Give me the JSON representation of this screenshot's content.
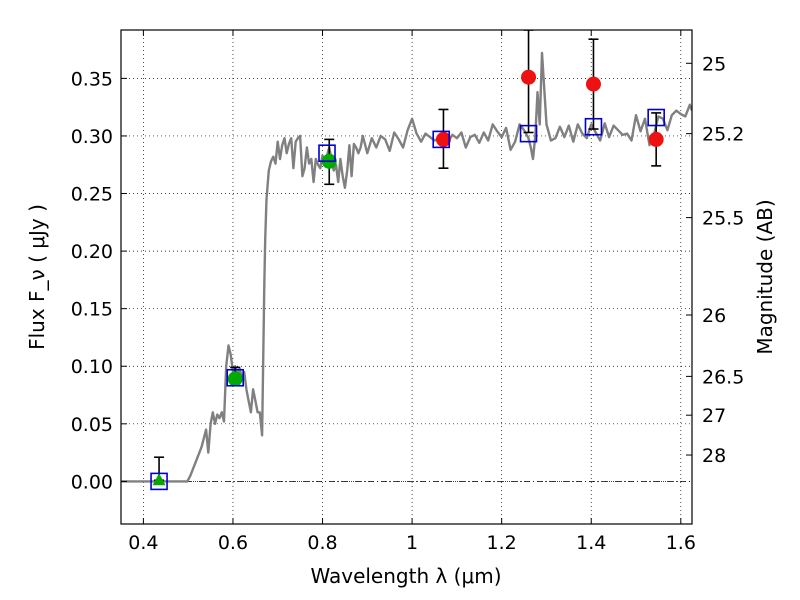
{
  "chart_data": {
    "type": "scatter",
    "xlabel": "Wavelength  λ (μm)",
    "ylabel": "Flux  F_ν  ( μJy )",
    "y2label": "Magnitude (AB)",
    "xlim": [
      0.35,
      1.625
    ],
    "ylim": [
      -0.037,
      0.392
    ],
    "xticks": [
      0.4,
      0.6,
      0.8,
      1.0,
      1.2,
      1.4,
      1.6
    ],
    "xtick_labels": [
      "0.4",
      "0.6",
      "0.8",
      "1",
      "1.2",
      "1.4",
      "1.6"
    ],
    "yticks": [
      0.0,
      0.05,
      0.1,
      0.15,
      0.2,
      0.25,
      0.3,
      0.35
    ],
    "ytick_labels": [
      "0.00",
      "0.05",
      "0.10",
      "0.15",
      "0.20",
      "0.25",
      "0.30",
      "0.35"
    ],
    "y2_ticks": [
      {
        "label": "25",
        "flux": 0.3631
      },
      {
        "label": "25.2",
        "flux": 0.302
      },
      {
        "label": "25.5",
        "flux": 0.2291
      },
      {
        "label": "26",
        "flux": 0.1445
      },
      {
        "label": "26.5",
        "flux": 0.0912
      },
      {
        "label": "27",
        "flux": 0.0575
      },
      {
        "label": "28",
        "flux": 0.0229
      }
    ],
    "grid": true,
    "grid_style": "dotted",
    "zero_line": true,
    "colors": {
      "template": "#808080",
      "model_box": "#0000cc",
      "detection": "#00aa00",
      "measurement": "#ee1111",
      "errorbar": "#000000"
    },
    "template_spectrum": {
      "x": [
        0.35,
        0.44,
        0.498,
        0.505,
        0.52,
        0.53,
        0.54,
        0.545,
        0.55,
        0.555,
        0.56,
        0.565,
        0.57,
        0.575,
        0.58,
        0.585,
        0.59,
        0.595,
        0.6,
        0.605,
        0.61,
        0.615,
        0.62,
        0.625,
        0.63,
        0.635,
        0.64,
        0.645,
        0.65,
        0.655,
        0.66,
        0.665,
        0.67,
        0.672,
        0.675,
        0.68,
        0.685,
        0.69,
        0.695,
        0.7,
        0.705,
        0.71,
        0.715,
        0.72,
        0.725,
        0.73,
        0.735,
        0.74,
        0.745,
        0.75,
        0.755,
        0.76,
        0.765,
        0.77,
        0.775,
        0.78,
        0.785,
        0.79,
        0.795,
        0.8,
        0.805,
        0.81,
        0.815,
        0.82,
        0.825,
        0.83,
        0.835,
        0.84,
        0.845,
        0.85,
        0.855,
        0.86,
        0.865,
        0.87,
        0.875,
        0.88,
        0.885,
        0.89,
        0.9,
        0.91,
        0.92,
        0.93,
        0.94,
        0.95,
        0.96,
        0.97,
        0.98,
        0.99,
        1.0,
        1.01,
        1.02,
        1.03,
        1.04,
        1.05,
        1.06,
        1.07,
        1.08,
        1.09,
        1.1,
        1.11,
        1.12,
        1.13,
        1.14,
        1.15,
        1.16,
        1.17,
        1.18,
        1.19,
        1.2,
        1.21,
        1.22,
        1.23,
        1.24,
        1.25,
        1.26,
        1.265,
        1.27,
        1.275,
        1.28,
        1.285,
        1.29,
        1.3,
        1.31,
        1.32,
        1.33,
        1.34,
        1.35,
        1.36,
        1.37,
        1.38,
        1.39,
        1.4,
        1.41,
        1.42,
        1.43,
        1.44,
        1.45,
        1.46,
        1.47,
        1.48,
        1.49,
        1.5,
        1.51,
        1.52,
        1.53,
        1.54,
        1.55,
        1.56,
        1.57,
        1.58,
        1.59,
        1.6,
        1.61,
        1.62,
        1.625
      ],
      "y": [
        0.0,
        0.0,
        0.0,
        0.005,
        0.02,
        0.03,
        0.045,
        0.025,
        0.05,
        0.06,
        0.05,
        0.058,
        0.055,
        0.06,
        0.052,
        0.1,
        0.118,
        0.11,
        0.095,
        0.1,
        0.092,
        0.098,
        0.09,
        0.095,
        0.08,
        0.07,
        0.06,
        0.08,
        0.07,
        0.06,
        0.06,
        0.04,
        0.17,
        0.21,
        0.245,
        0.27,
        0.278,
        0.282,
        0.276,
        0.295,
        0.28,
        0.292,
        0.298,
        0.285,
        0.293,
        0.298,
        0.272,
        0.295,
        0.298,
        0.3,
        0.265,
        0.272,
        0.29,
        0.276,
        0.28,
        0.26,
        0.28,
        0.275,
        0.272,
        0.283,
        0.276,
        0.283,
        0.29,
        0.28,
        0.27,
        0.275,
        0.26,
        0.28,
        0.265,
        0.255,
        0.27,
        0.292,
        0.265,
        0.293,
        0.29,
        0.285,
        0.29,
        0.3,
        0.285,
        0.298,
        0.29,
        0.3,
        0.297,
        0.287,
        0.303,
        0.297,
        0.29,
        0.305,
        0.315,
        0.302,
        0.295,
        0.302,
        0.299,
        0.296,
        0.298,
        0.301,
        0.295,
        0.301,
        0.298,
        0.303,
        0.29,
        0.299,
        0.301,
        0.294,
        0.303,
        0.296,
        0.31,
        0.304,
        0.299,
        0.307,
        0.288,
        0.295,
        0.31,
        0.305,
        0.298,
        0.29,
        0.28,
        0.3,
        0.338,
        0.31,
        0.372,
        0.31,
        0.296,
        0.298,
        0.308,
        0.299,
        0.309,
        0.295,
        0.31,
        0.302,
        0.298,
        0.31,
        0.303,
        0.296,
        0.311,
        0.299,
        0.309,
        0.305,
        0.301,
        0.302,
        0.296,
        0.318,
        0.304,
        0.315,
        0.292,
        0.301,
        0.317,
        0.315,
        0.305,
        0.318,
        0.322,
        0.319,
        0.317,
        0.327,
        0.322
      ]
    },
    "model_boxes": {
      "x": [
        0.435,
        0.605,
        0.81,
        1.065,
        1.26,
        1.405,
        1.545
      ],
      "y": [
        0.0,
        0.09,
        0.285,
        0.297,
        0.302,
        0.308,
        0.316
      ]
    },
    "detections": {
      "x": [
        0.435,
        0.605,
        0.815
      ],
      "y": [
        0.001,
        0.089,
        0.278
      ],
      "markers": [
        "triangle",
        "circle",
        "circle"
      ],
      "err_low": [
        0.001,
        0.089,
        0.258
      ],
      "err_high": [
        0.021,
        0.099,
        0.297
      ]
    },
    "measurements": {
      "x": [
        1.07,
        1.26,
        1.405,
        1.545
      ],
      "y": [
        0.297,
        0.351,
        0.345,
        0.297
      ],
      "err_low": [
        0.272,
        0.303,
        0.306,
        0.274
      ],
      "err_high": [
        0.323,
        0.392,
        0.384,
        0.32
      ]
    }
  }
}
